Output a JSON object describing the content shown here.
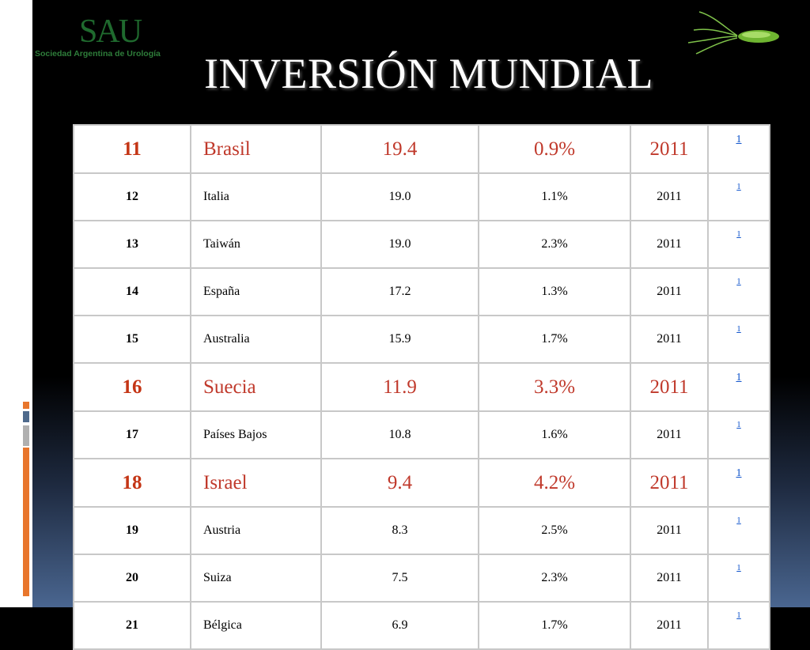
{
  "logo": {
    "mark": "SAU",
    "text": "Sociedad Argentina de Urología"
  },
  "title": "INVERSIÓN MUNDIAL",
  "colors": {
    "highlight": "#c0392b",
    "link": "#1155cc",
    "logo_green": "#2e7d3a",
    "accent_orange": "#e8762c"
  },
  "icons": [
    "shelf-icon",
    "sperm-illustration"
  ],
  "table": {
    "rows": [
      {
        "rank": "11",
        "country": "Brasil",
        "value": "19.4",
        "pct": "0.9%",
        "year": "2011",
        "ref": "1",
        "highlight": true
      },
      {
        "rank": "12",
        "country": "Italia",
        "value": "19.0",
        "pct": "1.1%",
        "year": "2011",
        "ref": "1",
        "highlight": false
      },
      {
        "rank": "13",
        "country": "Taiwán",
        "value": "19.0",
        "pct": "2.3%",
        "year": "2011",
        "ref": "1",
        "highlight": false
      },
      {
        "rank": "14",
        "country": "España",
        "value": "17.2",
        "pct": "1.3%",
        "year": "2011",
        "ref": "1",
        "highlight": false
      },
      {
        "rank": "15",
        "country": "Australia",
        "value": "15.9",
        "pct": "1.7%",
        "year": "2011",
        "ref": "1",
        "highlight": false
      },
      {
        "rank": "16",
        "country": "Suecia",
        "value": "11.9",
        "pct": "3.3%",
        "year": "2011",
        "ref": "1",
        "highlight": true
      },
      {
        "rank": "17",
        "country": "Países Bajos",
        "value": "10.8",
        "pct": "1.6%",
        "year": "2011",
        "ref": "1",
        "highlight": false
      },
      {
        "rank": "18",
        "country": "Israel",
        "value": "9.4",
        "pct": "4.2%",
        "year": "2011",
        "ref": "1",
        "highlight": true
      },
      {
        "rank": "19",
        "country": "Austria",
        "value": "8.3",
        "pct": "2.5%",
        "year": "2011",
        "ref": "1",
        "highlight": false
      },
      {
        "rank": "20",
        "country": "Suiza",
        "value": "7.5",
        "pct": "2.3%",
        "year": "2011",
        "ref": "1",
        "highlight": false
      },
      {
        "rank": "21",
        "country": "Bélgica",
        "value": "6.9",
        "pct": "1.7%",
        "year": "2011",
        "ref": "1",
        "highlight": false
      }
    ]
  }
}
